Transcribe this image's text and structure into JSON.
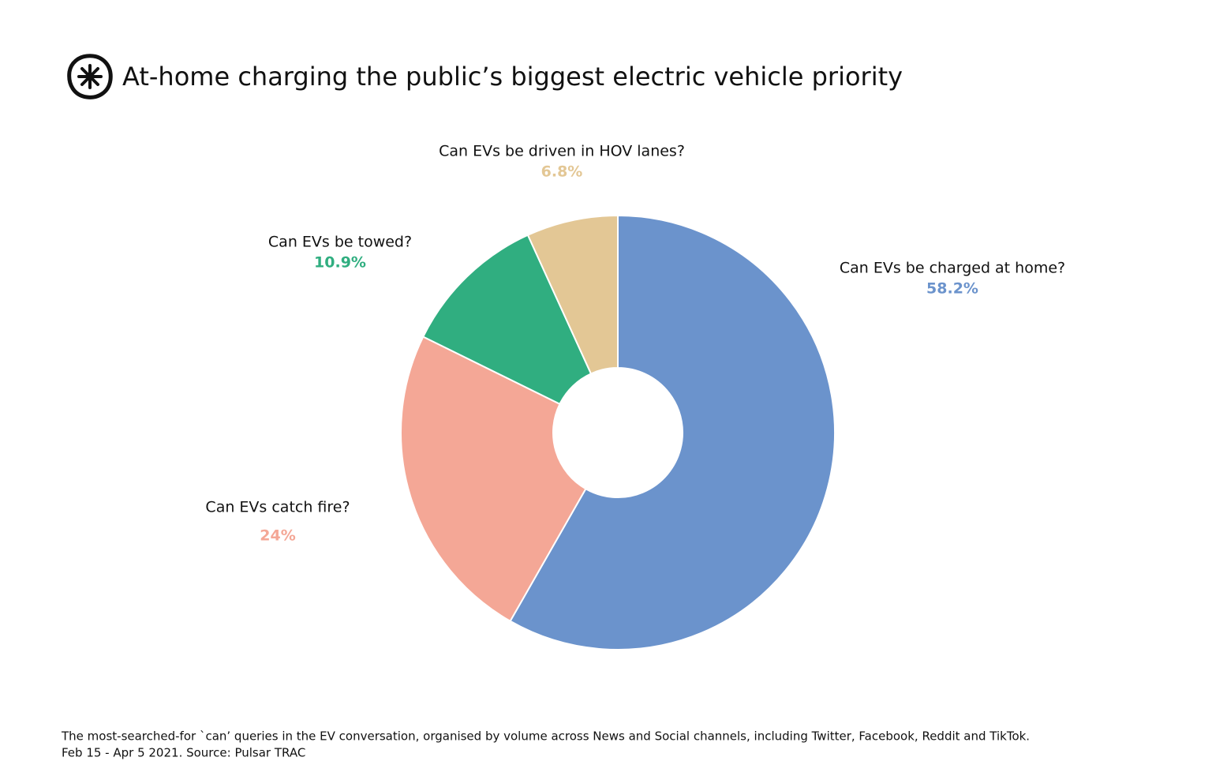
{
  "chart_data": {
    "type": "donut",
    "title": "At-home charging the public’s biggest electric vehicle priority",
    "categories": [
      "Can EVs be charged at home?",
      "Can EVs catch fire?",
      "Can EVs be towed?",
      "Can EVs be driven in HOV lanes?"
    ],
    "values": [
      58.2,
      24,
      10.9,
      6.8
    ],
    "value_labels": [
      "58.2%",
      "24%",
      "10.9%",
      "6.8%"
    ],
    "colors": [
      "#6b93cc",
      "#f4a796",
      "#30ae80",
      "#e3c795"
    ],
    "footnote": [
      "The most-searched-for `can’ queries in the EV conversation, organised by volume across News and Social channels, including Twitter, Facebook, Reddit and TikTok.",
      "Feb 15 - Apr 5 2021. Source: Pulsar TRAC"
    ]
  }
}
